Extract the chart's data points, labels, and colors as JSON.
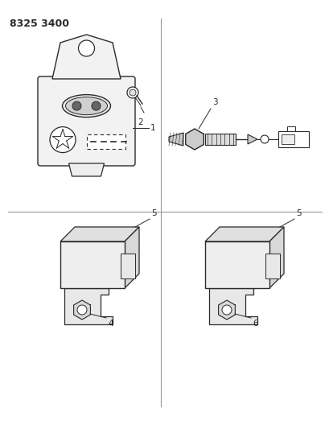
{
  "title": "8325 3400",
  "bg_color": "#ffffff",
  "line_color": "#2a2a2a",
  "title_fontsize": 9,
  "label_fontsize": 7.5,
  "figsize": [
    4.1,
    5.33
  ],
  "dpi": 100
}
